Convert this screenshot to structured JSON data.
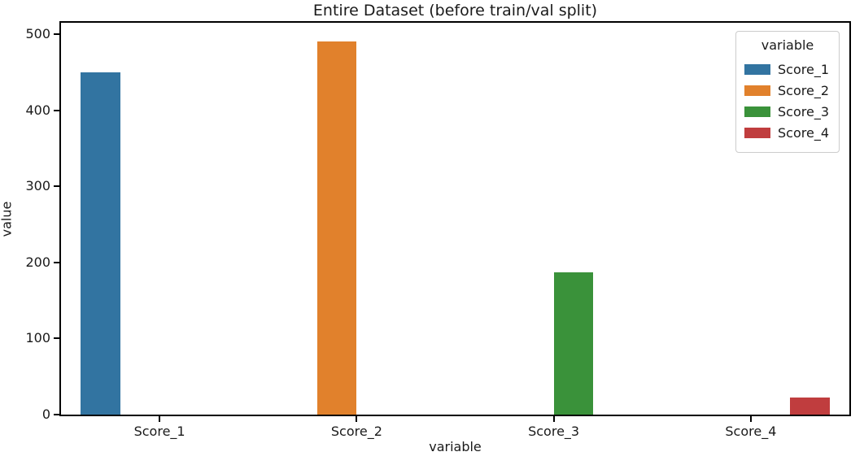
{
  "chart_data": {
    "type": "bar",
    "title": "Entire Dataset (before train/val split)",
    "xlabel": "variable",
    "ylabel": "value",
    "categories": [
      "Score_1",
      "Score_2",
      "Score_3",
      "Score_4"
    ],
    "values": [
      450,
      491,
      187,
      22
    ],
    "colors": [
      "#3274a1",
      "#e1812c",
      "#3a923a",
      "#c03d3e"
    ],
    "ylim": [
      0,
      515
    ],
    "yticks": [
      0,
      100,
      200,
      300,
      400,
      500
    ],
    "grid": false,
    "legend": {
      "title": "variable",
      "position": "upper right",
      "entries": [
        {
          "label": "Score_1",
          "color": "#3274a1"
        },
        {
          "label": "Score_2",
          "color": "#e1812c"
        },
        {
          "label": "Score_3",
          "color": "#3a923a"
        },
        {
          "label": "Score_4",
          "color": "#c03d3e"
        }
      ]
    }
  }
}
